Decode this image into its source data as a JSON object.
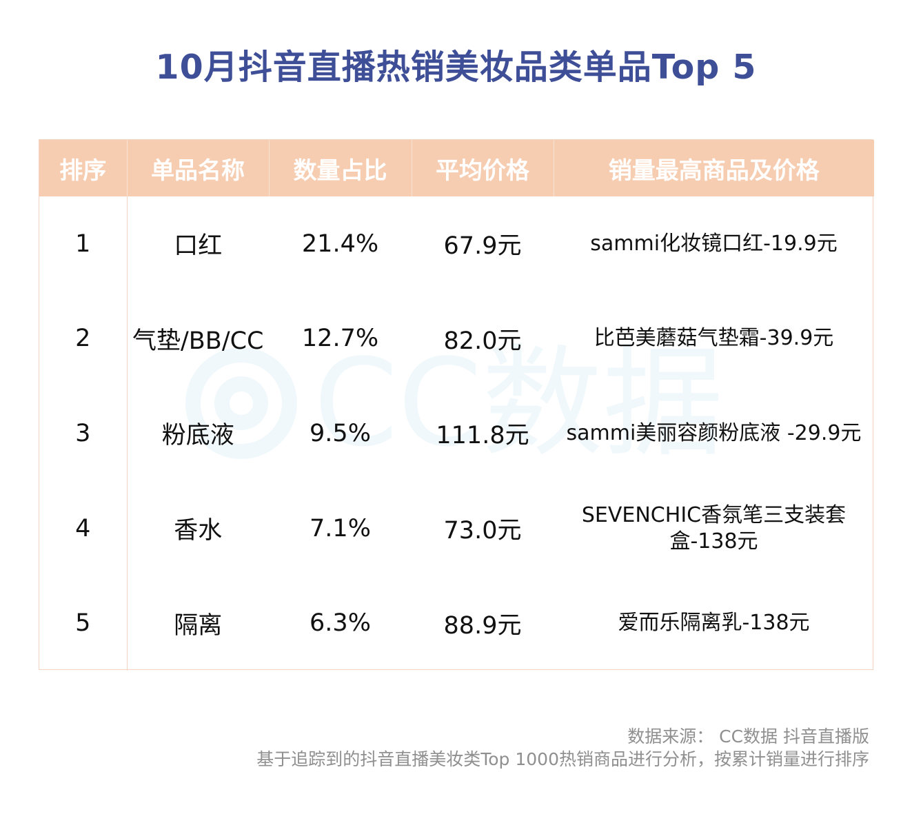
{
  "title": "10月抖音直播热销美妆品类单品Top 5",
  "watermark_text": "CC数据",
  "chart_data": {
    "type": "table",
    "columns": [
      "排序",
      "单品名称",
      "数量占比",
      "平均价格",
      "销量最高商品及价格"
    ],
    "rows": [
      {
        "rank": "1",
        "name": "口红",
        "share": "21.4%",
        "avg_price": "67.9元",
        "top_item": "sammi化妆镜口红-19.9元"
      },
      {
        "rank": "2",
        "name": "气垫/BB/CC",
        "share": "12.7%",
        "avg_price": "82.0元",
        "top_item": "比芭美蘑菇气垫霜-39.9元"
      },
      {
        "rank": "3",
        "name": "粉底液",
        "share": "9.5%",
        "avg_price": "111.8元",
        "top_item": "sammi美丽容颜粉底液 -29.9元"
      },
      {
        "rank": "4",
        "name": "香水",
        "share": "7.1%",
        "avg_price": "73.0元",
        "top_item": "SEVENCHIC香氛笔三支装套盒-138元"
      },
      {
        "rank": "5",
        "name": "隔离",
        "share": "6.3%",
        "avg_price": "88.9元",
        "top_item": "爱而乐隔离乳-138元"
      }
    ]
  },
  "footer": {
    "source_line": "数据来源： CC数据 抖音直播版",
    "note_line": "基于追踪到的抖音直播美妆类Top 1000热销商品进行分析，按累计销量进行排序"
  },
  "colors": {
    "title": "#3f4f97",
    "header_bg": "#f7cdb2",
    "header_text": "#ffffff",
    "border": "#f3d3c1",
    "footer_text": "#8f8f8f",
    "watermark": "#3fa6d6"
  }
}
